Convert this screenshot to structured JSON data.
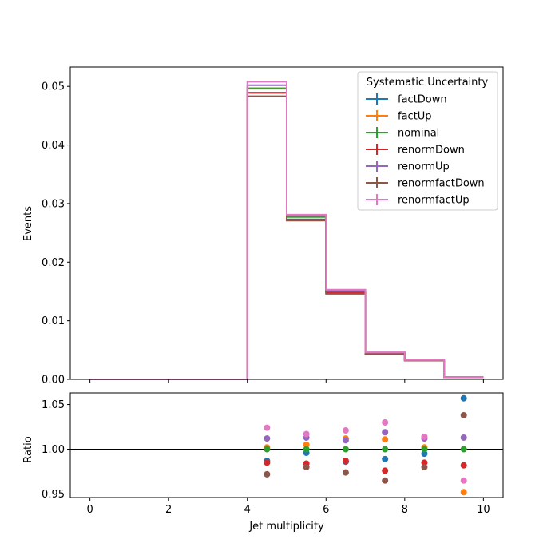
{
  "chart_data": [
    {
      "type": "line",
      "subtype": "step-histogram",
      "ylabel": "Events",
      "xlim": [
        -0.5,
        10.5
      ],
      "ylim": [
        0.0,
        0.0533
      ],
      "yticks": [
        0.0,
        0.01,
        0.02,
        0.03,
        0.04,
        0.05
      ],
      "ytick_labels": [
        "0.00",
        "0.01",
        "0.02",
        "0.03",
        "0.04",
        "0.05"
      ],
      "xticks": [
        0,
        2,
        4,
        6,
        8,
        10
      ],
      "grid": false,
      "legend": {
        "title": "Systematic Uncertainty",
        "placement": "top-right"
      },
      "bin_edges": [
        0,
        1,
        2,
        3,
        4,
        5,
        6,
        7,
        8,
        9,
        10
      ],
      "series": [
        {
          "name": "factDown",
          "color": "#1f77b4",
          "values": [
            0,
            0,
            0,
            0,
            0.0489,
            0.0273,
            0.0148,
            0.0044,
            0.0033,
            0.0004
          ]
        },
        {
          "name": "factUp",
          "color": "#ff7f0e",
          "values": [
            0,
            0,
            0,
            0,
            0.0497,
            0.0278,
            0.015,
            0.0045,
            0.0033,
            0.0004
          ]
        },
        {
          "name": "nominal",
          "color": "#2ca02c",
          "values": [
            0,
            0,
            0,
            0,
            0.0496,
            0.0277,
            0.015,
            0.0045,
            0.0033,
            0.0004
          ]
        },
        {
          "name": "renormDown",
          "color": "#d62728",
          "values": [
            0,
            0,
            0,
            0,
            0.0489,
            0.0272,
            0.0148,
            0.0044,
            0.0033,
            0.0004
          ]
        },
        {
          "name": "renormUp",
          "color": "#9467bd",
          "values": [
            0,
            0,
            0,
            0,
            0.0502,
            0.028,
            0.0151,
            0.0046,
            0.0033,
            0.0004
          ]
        },
        {
          "name": "renormfactDown",
          "color": "#8c564b",
          "values": [
            0,
            0,
            0,
            0,
            0.0483,
            0.0271,
            0.0146,
            0.0043,
            0.0032,
            0.0004
          ]
        },
        {
          "name": "renormfactUp",
          "color": "#e377c2",
          "values": [
            0,
            0,
            0,
            0,
            0.0508,
            0.0281,
            0.0153,
            0.0046,
            0.0033,
            0.0004
          ]
        }
      ]
    },
    {
      "type": "scatter",
      "xlabel": "Jet multiplicity",
      "ylabel": "Ratio",
      "xlim": [
        -0.5,
        10.5
      ],
      "ylim": [
        0.946,
        1.063
      ],
      "yticks": [
        0.95,
        1.0,
        1.05
      ],
      "ytick_labels": [
        "0.95",
        "1.00",
        "1.05"
      ],
      "xticks": [
        0,
        2,
        4,
        6,
        8,
        10
      ],
      "xtick_labels": [
        "0",
        "2",
        "4",
        "6",
        "8",
        "10"
      ],
      "reference_line": 1.0,
      "grid": false,
      "x": [
        4.5,
        5.5,
        6.5,
        7.5,
        8.5,
        9.5
      ],
      "series": [
        {
          "name": "factDown",
          "color": "#1f77b4",
          "values": [
            0.987,
            0.996,
            0.986,
            0.989,
            0.995,
            1.057
          ]
        },
        {
          "name": "factUp",
          "color": "#ff7f0e",
          "values": [
            1.002,
            1.005,
            1.012,
            1.011,
            1.002,
            0.952
          ]
        },
        {
          "name": "nominal",
          "color": "#2ca02c",
          "values": [
            1.0,
            1.0,
            1.0,
            1.0,
            1.0,
            1.0
          ]
        },
        {
          "name": "renormDown",
          "color": "#d62728",
          "values": [
            0.985,
            0.984,
            0.987,
            0.976,
            0.985,
            0.982
          ]
        },
        {
          "name": "renormUp",
          "color": "#9467bd",
          "values": [
            1.012,
            1.013,
            1.01,
            1.019,
            1.012,
            1.013
          ]
        },
        {
          "name": "renormfactDown",
          "color": "#8c564b",
          "values": [
            0.972,
            0.98,
            0.974,
            0.965,
            0.98,
            1.038
          ]
        },
        {
          "name": "renormfactUp",
          "color": "#e377c2",
          "values": [
            1.024,
            1.017,
            1.021,
            1.03,
            1.014,
            0.965
          ]
        }
      ]
    }
  ]
}
